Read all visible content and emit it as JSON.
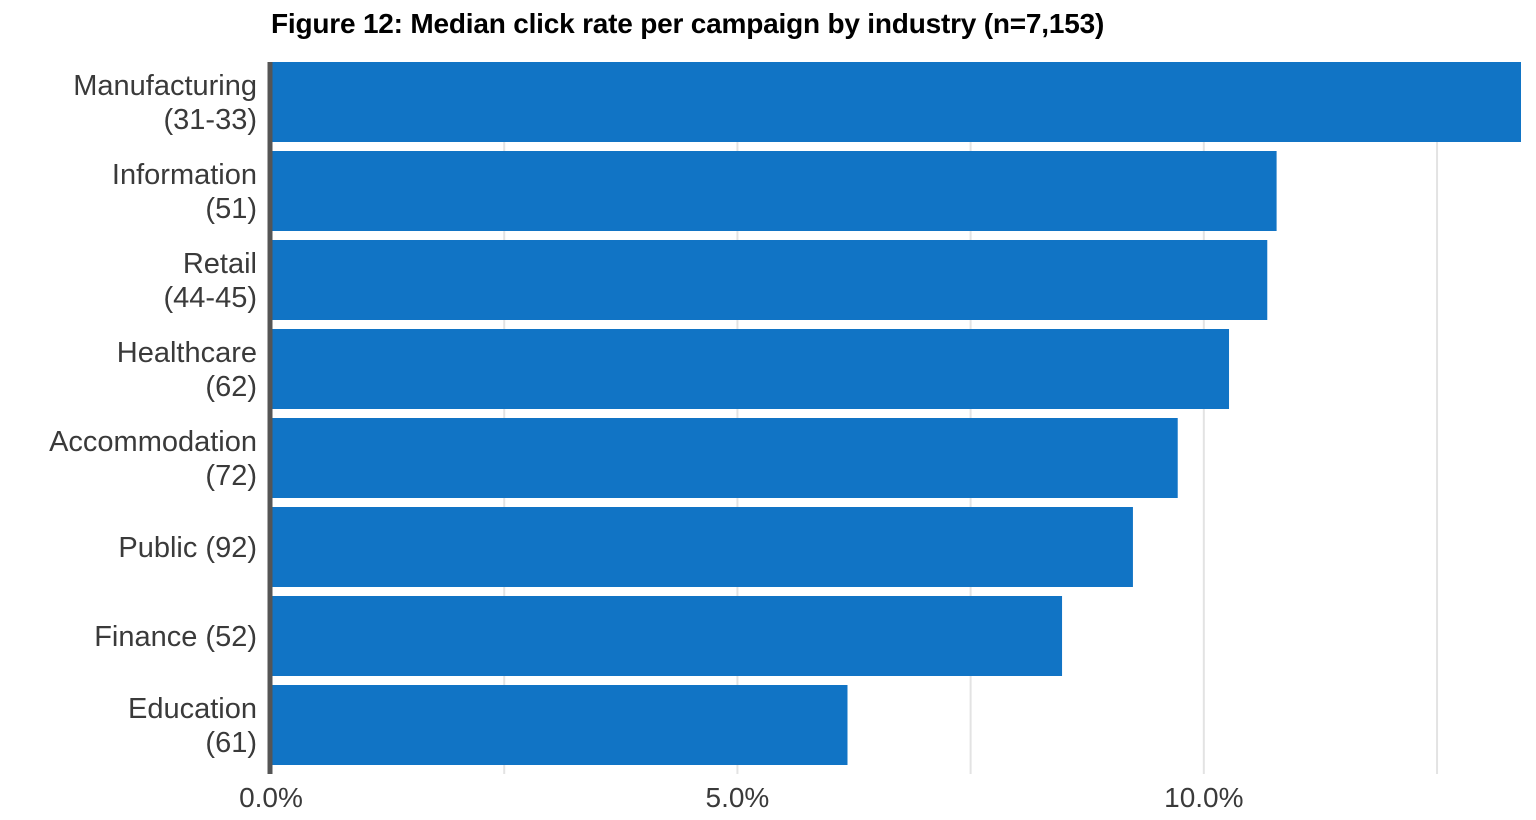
{
  "chart_data": {
    "type": "bar",
    "orientation": "horizontal",
    "title": "Figure 12: Median click rate per campaign by industry (n=7,153)",
    "xlabel": "",
    "ylabel": "",
    "categories": [
      [
        "Manufacturing",
        "(31-33)"
      ],
      [
        "Information",
        "(51)"
      ],
      [
        "Retail",
        "(44-45)"
      ],
      [
        "Healthcare",
        "(62)"
      ],
      [
        "Accommodation",
        "(72)"
      ],
      [
        "Public (92)"
      ],
      [
        "Finance (52)"
      ],
      [
        "Education",
        "(61)"
      ]
    ],
    "values": [
      13.5,
      10.78,
      10.68,
      10.27,
      9.72,
      9.24,
      8.48,
      6.18
    ],
    "xlim": [
      0,
      13.4
    ],
    "x_ticks": [
      0,
      5,
      10
    ],
    "x_tick_labels": [
      "0.0%",
      "5.0%",
      "10.0%"
    ],
    "gridlines": [
      2.5,
      5,
      7.5,
      10,
      12.5
    ],
    "grid": true,
    "bar_color": "#1174c5",
    "grid_color": "#e3e3e3",
    "axis_color": "#555555",
    "text_color": "#3a3a3a"
  }
}
